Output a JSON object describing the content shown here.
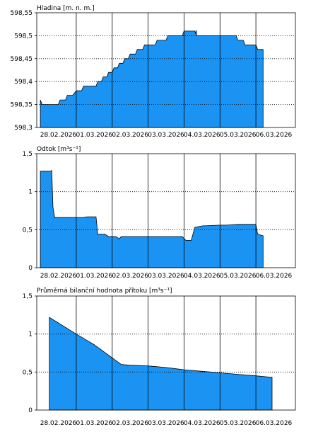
{
  "colors": {
    "fill": "#1b93f3",
    "stroke": "#000000",
    "grid_major": "#000000",
    "grid_minor": "#000000"
  },
  "chart_data": [
    {
      "type": "area",
      "title": "Hladina [m. n. m.]",
      "ylim": [
        598.3,
        598.55
      ],
      "yticks": [
        598.3,
        598.35,
        598.4,
        598.45,
        598.5,
        598.55
      ],
      "ytick_labels": [
        "598,3",
        "598,35",
        "598,4",
        "598,45",
        "598,5",
        "598,55"
      ],
      "xlim": [
        -0.1,
        7.1
      ],
      "day_lines": [
        1,
        2,
        3,
        4,
        5,
        6
      ],
      "xtick_labels": [
        "28.02.2026",
        "01.03.2026",
        "02.03.2026",
        "03.03.2026",
        "04.03.2026",
        "05.03.2026",
        "06.03.2026"
      ],
      "grid": "dotted-horizontal",
      "x": [
        0,
        0.05,
        0.5,
        0.55,
        0.7,
        0.75,
        0.9,
        1.0,
        1.15,
        1.2,
        1.55,
        1.6,
        1.7,
        1.75,
        1.85,
        1.9,
        2.0,
        2.05,
        2.15,
        2.2,
        2.3,
        2.35,
        2.45,
        2.5,
        2.65,
        2.7,
        2.85,
        2.9,
        3.2,
        3.25,
        3.5,
        3.55,
        3.95,
        4.0,
        4.3,
        4.32,
        4.34,
        4.35,
        4.4,
        5.05,
        5.1,
        5.45,
        5.5,
        5.65,
        5.7,
        6.0,
        6.05,
        6.2
      ],
      "y": [
        598.36,
        598.35,
        598.35,
        598.36,
        598.36,
        598.37,
        598.37,
        598.38,
        598.38,
        598.39,
        598.39,
        598.4,
        598.4,
        598.41,
        598.41,
        598.42,
        598.42,
        598.43,
        598.43,
        598.44,
        598.44,
        598.45,
        598.45,
        598.46,
        598.46,
        598.47,
        598.47,
        598.48,
        598.48,
        598.49,
        598.49,
        598.5,
        598.5,
        598.51,
        598.51,
        598.505,
        598.512,
        598.5,
        598.5,
        598.5,
        598.5,
        598.5,
        598.49,
        598.49,
        598.48,
        598.48,
        598.47,
        598.47
      ]
    },
    {
      "type": "area",
      "title": "Odtok [m³s⁻¹]",
      "ylim": [
        0,
        1.5
      ],
      "yticks": [
        0,
        0.5,
        1,
        1.5
      ],
      "ytick_labels": [
        "0",
        "0,5",
        "1",
        "1,5"
      ],
      "xlim": [
        -0.1,
        7.1
      ],
      "day_lines": [
        1,
        2,
        3,
        4,
        5,
        6
      ],
      "xtick_labels": [
        "28.02.2026",
        "01.03.2026",
        "02.03.2026",
        "03.03.2026",
        "04.03.2026",
        "05.03.2026",
        "06.03.2026"
      ],
      "grid": "dotted-horizontal",
      "x": [
        0,
        0.3,
        0.32,
        0.35,
        0.4,
        1.2,
        1.3,
        1.55,
        1.6,
        1.8,
        1.9,
        2.1,
        2.2,
        2.25,
        3.95,
        4.05,
        4.2,
        4.3,
        4.5,
        5.0,
        5.2,
        5.5,
        6.0,
        6.05,
        6.2
      ],
      "y": [
        1.27,
        1.27,
        1.28,
        0.8,
        0.66,
        0.66,
        0.67,
        0.67,
        0.44,
        0.44,
        0.41,
        0.41,
        0.38,
        0.41,
        0.41,
        0.36,
        0.36,
        0.53,
        0.55,
        0.56,
        0.56,
        0.57,
        0.57,
        0.44,
        0.42
      ]
    },
    {
      "type": "area",
      "title": "Průměrná bilanční hodnota přítoku [m³s⁻¹]",
      "ylim": [
        0,
        1.5
      ],
      "yticks": [
        0,
        0.5,
        1,
        1.5
      ],
      "ytick_labels": [
        "0",
        "0,5",
        "1",
        "1,5"
      ],
      "xlim": [
        -0.1,
        7.1
      ],
      "day_lines": [
        1,
        2,
        3,
        4,
        5,
        6
      ],
      "xtick_labels": [
        "28.02.2026",
        "01.03.2026",
        "02.03.2026",
        "03.03.2026",
        "04.03.2026",
        "05.03.2026",
        "06.03.2026"
      ],
      "grid": "dotted-horizontal",
      "x": [
        0.25,
        1.0,
        1.5,
        2.25,
        2.5,
        3.0,
        3.5,
        4.0,
        4.5,
        5.0,
        5.5,
        6.0,
        6.45
      ],
      "y": [
        1.22,
        1.0,
        0.86,
        0.6,
        0.59,
        0.58,
        0.56,
        0.53,
        0.51,
        0.49,
        0.47,
        0.45,
        0.43
      ]
    }
  ]
}
